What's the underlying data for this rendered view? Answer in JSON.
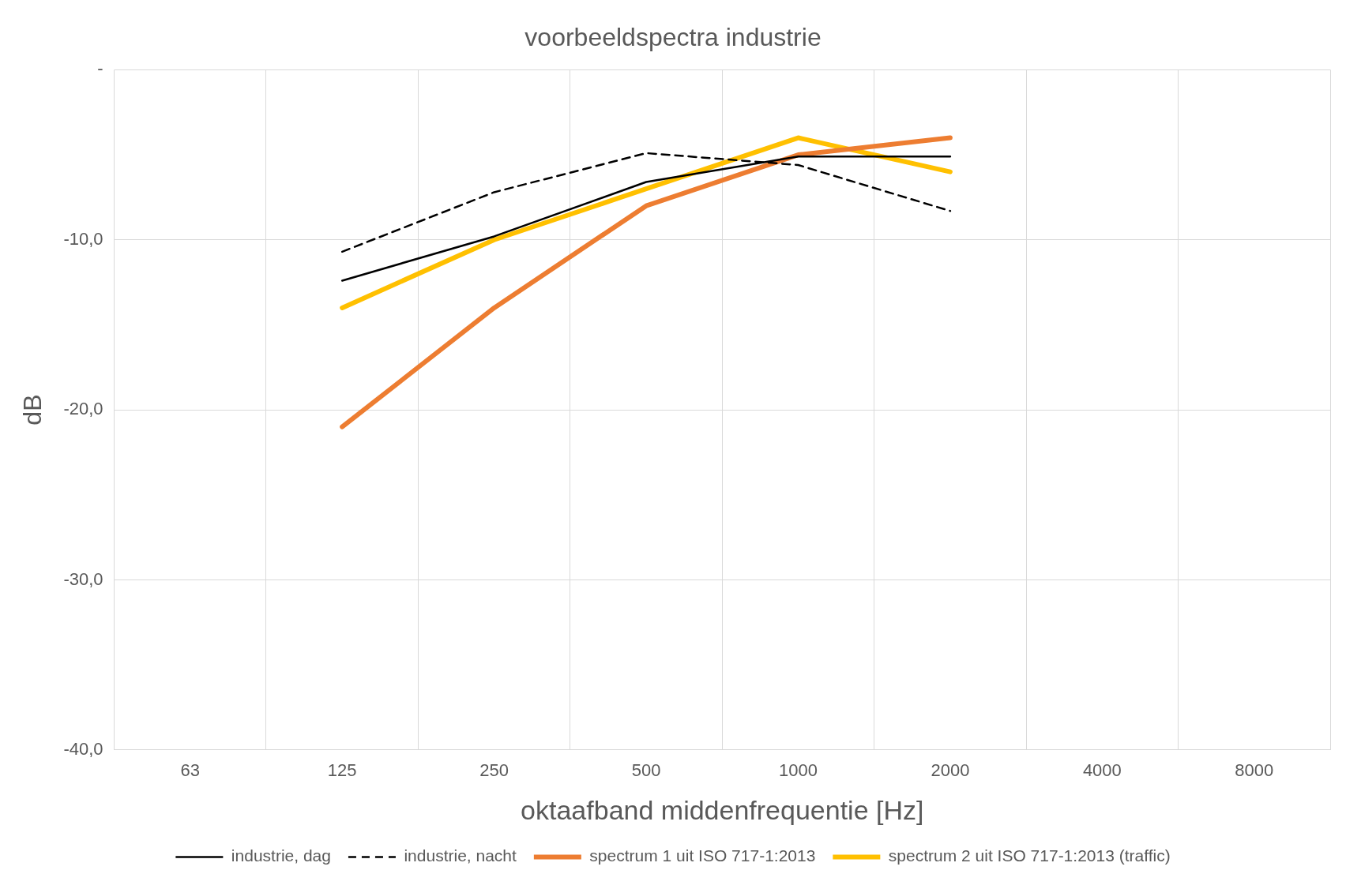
{
  "chart_data": {
    "type": "line",
    "title": "voorbeeldspectra industrie",
    "xlabel": "oktaafband middenfrequentie [Hz]",
    "ylabel": "dB",
    "categories": [
      "63",
      "125",
      "250",
      "500",
      "1000",
      "2000",
      "4000",
      "8000"
    ],
    "series": [
      {
        "name": "industrie, dag",
        "color": "#000000",
        "line_style": "solid",
        "values": [
          null,
          -12.4,
          -9.8,
          -6.6,
          -5.1,
          -5.1,
          null,
          null
        ]
      },
      {
        "name": "industrie, nacht",
        "color": "#000000",
        "line_style": "dashed",
        "values": [
          null,
          -10.7,
          -7.2,
          -4.9,
          -5.6,
          -8.3,
          null,
          null
        ]
      },
      {
        "name": "spectrum 1 uit ISO 717-1:2013",
        "color": "#ed7d31",
        "line_style": "solid",
        "values": [
          null,
          -21,
          -14,
          -8,
          -5,
          -4,
          null,
          null
        ]
      },
      {
        "name": "spectrum 2 uit ISO 717-1:2013 (traffic)",
        "color": "#ffc000",
        "line_style": "solid",
        "values": [
          null,
          -14,
          -10,
          -7,
          -4,
          -6,
          null,
          null
        ]
      }
    ],
    "ylim": [
      -40,
      0
    ],
    "yticks": [
      {
        "value": -40,
        "label": "-40,0"
      },
      {
        "value": -30,
        "label": "-30,0"
      },
      {
        "value": -20,
        "label": "-20,0"
      },
      {
        "value": -10,
        "label": "-10,0"
      },
      {
        "value": 0,
        "label": "-"
      }
    ],
    "grid": true,
    "legend": "bottom",
    "marker": "none"
  }
}
